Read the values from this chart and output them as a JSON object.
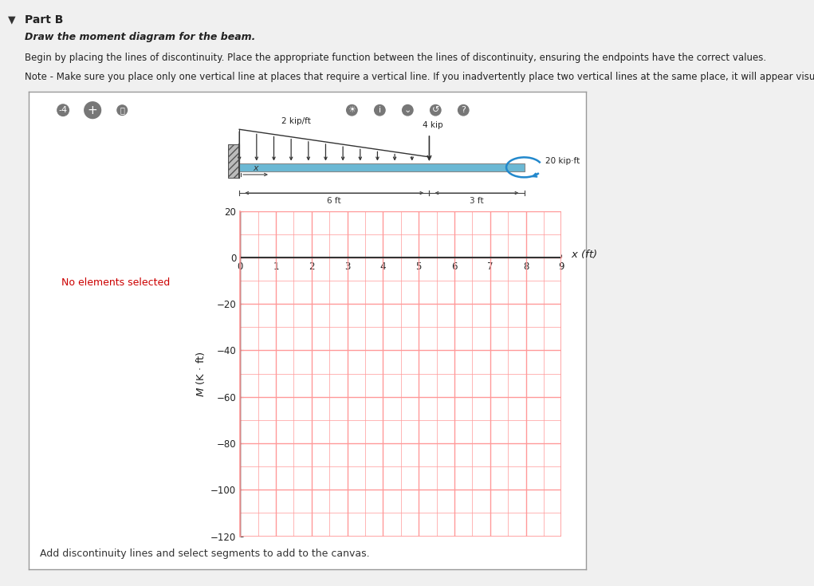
{
  "page_bg": "#f0f0f0",
  "panel_bg": "#ffffff",
  "sidebar_bg": "#cccccc",
  "toolbar_bg": "#555555",
  "title": "Part B",
  "instruction1": "Draw the moment diagram for the beam.",
  "instruction2": "Begin by placing the lines of discontinuity. Place the appropriate function between the lines of discontinuity, ensuring the endpoints have the correct values.",
  "instruction3": "Note - Make sure you place only one vertical line at places that require a vertical line. If you inadvertently place two vertical lines at the same place, it will appear visually correct be",
  "distributed_load": "2 kip/ft",
  "point_load": "4 kip",
  "moment_load": "20 kip·ft",
  "graph_ylabel": "M (K · ft)",
  "graph_xlim": [
    0,
    9
  ],
  "graph_ylim": [
    -120,
    20
  ],
  "graph_xticks": [
    0,
    1,
    2,
    3,
    4,
    5,
    6,
    7,
    8,
    9
  ],
  "graph_yticks": [
    20,
    0,
    -20,
    -40,
    -60,
    -80,
    -100,
    -120
  ],
  "grid_color": "#ff9999",
  "axis_color": "#333333",
  "bottom_text": "Add discontinuity lines and select segments to add to the canvas.",
  "sidebar_text": "No elements selected",
  "sidebar_text_color": "#cc0000",
  "beam_color": "#6bb8d4"
}
